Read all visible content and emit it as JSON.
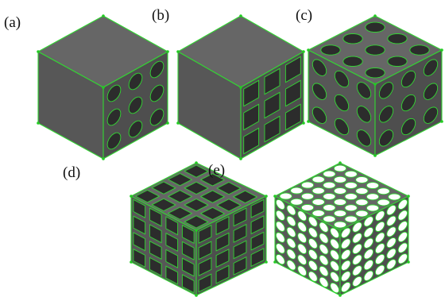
{
  "figure": {
    "panel_labels": [
      "(a)",
      "(b)",
      "(c)",
      "(d)",
      "(e)"
    ]
  },
  "colors": {
    "face_top": "#666666",
    "face_left": "#575757",
    "face_right": "#4e4e4e",
    "hole_dark": "#2c2c2c",
    "hole_bright": "#ffffff",
    "edge": "#33d633",
    "vertex": "#22cc22",
    "background": "#ffffff"
  },
  "panels": [
    {
      "label": "(a)",
      "hole_shape": "circle",
      "grid": 3,
      "faces_with_holes": [
        "right"
      ]
    },
    {
      "label": "(b)",
      "hole_shape": "square",
      "grid": 3,
      "faces_with_holes": [
        "right"
      ]
    },
    {
      "label": "(c)",
      "hole_shape": "circle",
      "grid": 3,
      "faces_with_holes": [
        "top",
        "left",
        "right"
      ]
    },
    {
      "label": "(d)",
      "hole_shape": "square",
      "grid": 4,
      "faces_with_holes": [
        "top",
        "left",
        "right"
      ]
    },
    {
      "label": "(e)",
      "hole_shape": "circle",
      "grid": 6,
      "faces_with_holes": [
        "top",
        "left",
        "right"
      ],
      "see_through": true
    }
  ]
}
